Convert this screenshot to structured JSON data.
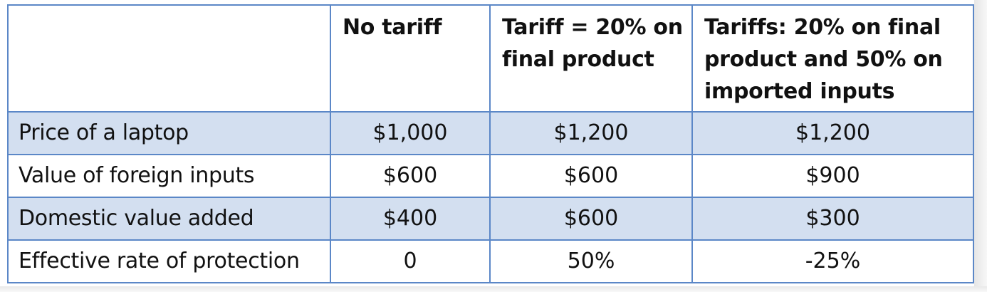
{
  "table": {
    "headers": [
      "",
      "No tariff",
      "Tariff  = 20% on final product",
      "Tariffs:  20% on final product and 50% on imported inputs"
    ],
    "rows": [
      {
        "label": "Price of a laptop",
        "values": [
          "$1,000",
          "$1,200",
          "$1,200"
        ]
      },
      {
        "label": "Value of foreign inputs",
        "values": [
          "$600",
          "$600",
          "$900"
        ]
      },
      {
        "label": "Domestic value added",
        "values": [
          "$400",
          "$600",
          "$300"
        ]
      },
      {
        "label": "Effective rate of protection",
        "values": [
          "0",
          "50%",
          "-25%"
        ]
      }
    ]
  },
  "colors": {
    "border": "#5b87c7",
    "shaded_row": "#d3dff0",
    "plain_row": "#ffffff"
  }
}
